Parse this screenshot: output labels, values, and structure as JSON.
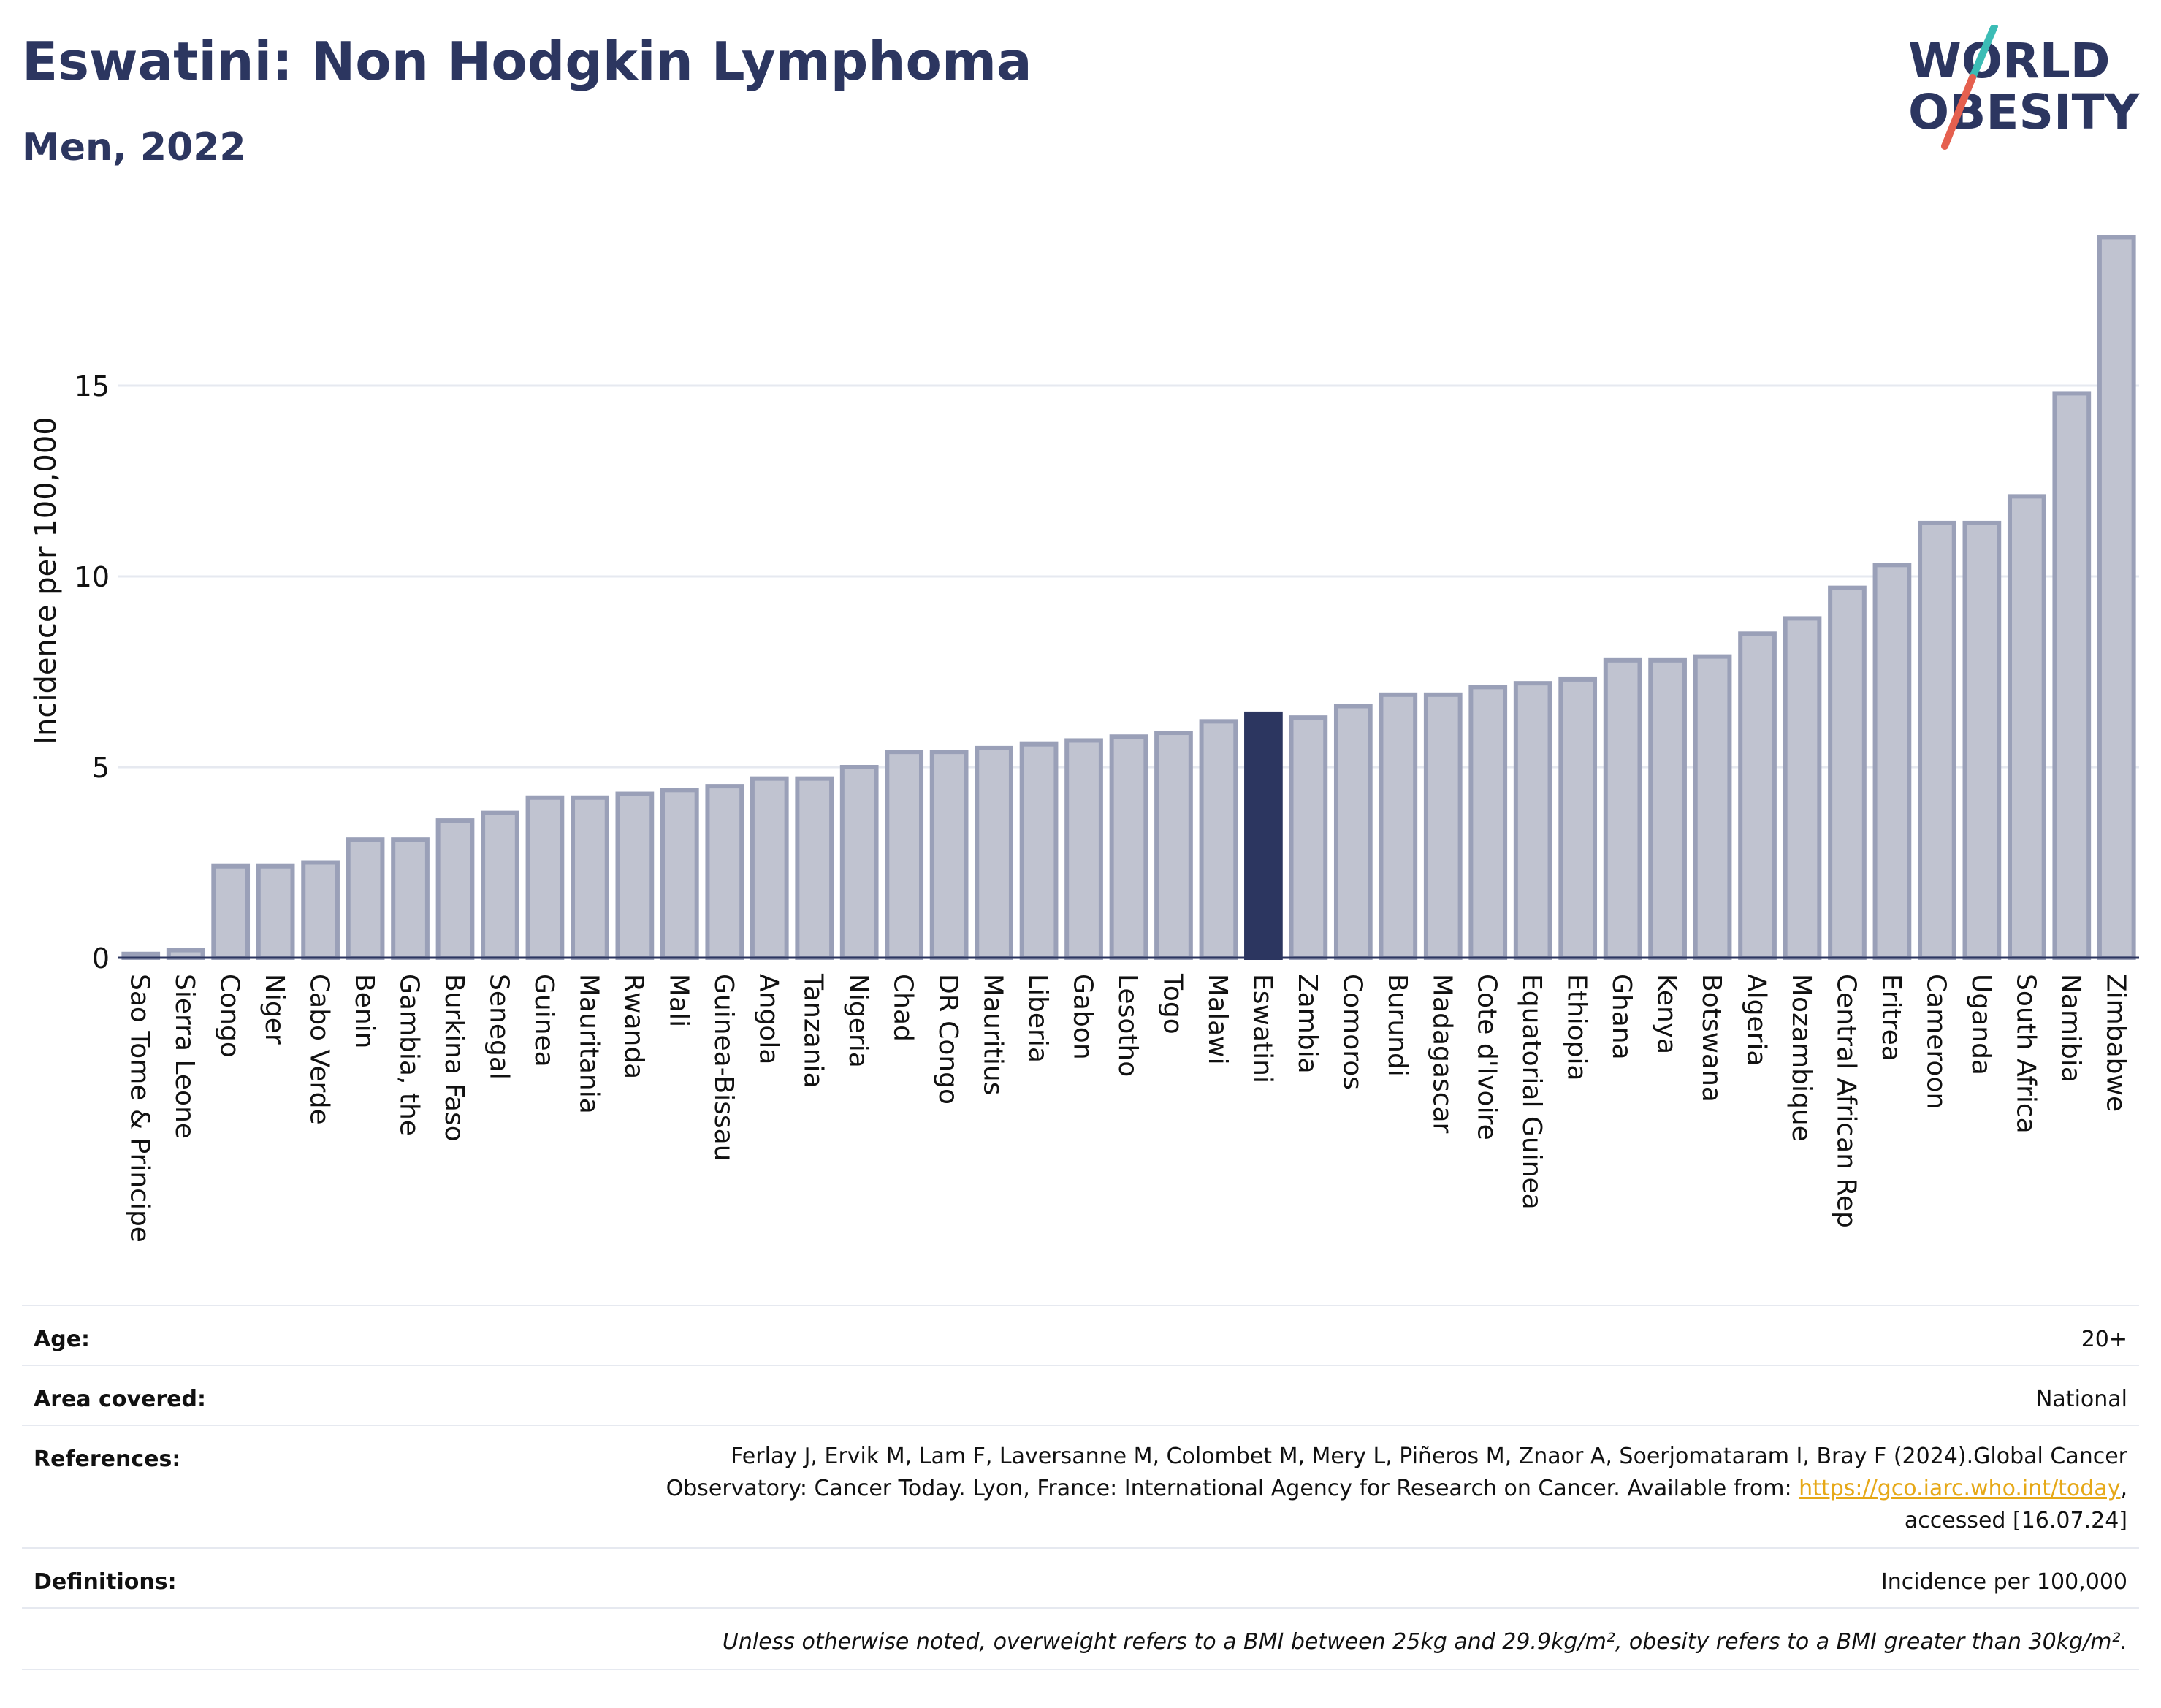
{
  "header": {
    "title": "Eswatini: Non Hodgkin Lymphoma",
    "subtitle": "Men, 2022"
  },
  "logo": {
    "line1": "WORLD",
    "line2": "OBESITY",
    "accent_teal": "#3bbcb5",
    "accent_red": "#e5604f",
    "text_color": "#2c3660"
  },
  "chart_data": {
    "type": "bar",
    "ylabel": "Incidence per 100,000",
    "ylim": [
      0,
      19
    ],
    "yticks": [
      0,
      5,
      10,
      15
    ],
    "grid": true,
    "highlight": "Eswatini",
    "colors": {
      "bar": "#c0c3d0",
      "bar_edge": "#9aa0b8",
      "highlight": "#2c3660",
      "axis": "#2c3660",
      "grid": "#e6e9f0"
    },
    "categories": [
      "Sao Tome & Principe",
      "Sierra Leone",
      "Congo",
      "Niger",
      "Cabo Verde",
      "Benin",
      "Gambia, the",
      "Burkina Faso",
      "Senegal",
      "Guinea",
      "Mauritania",
      "Rwanda",
      "Mali",
      "Guinea-Bissau",
      "Angola",
      "Tanzania",
      "Nigeria",
      "Chad",
      "DR Congo",
      "Mauritius",
      "Liberia",
      "Gabon",
      "Lesotho",
      "Togo",
      "Malawi",
      "Eswatini",
      "Zambia",
      "Comoros",
      "Burundi",
      "Madagascar",
      "Cote d'Ivoire",
      "Equatorial Guinea",
      "Ethiopia",
      "Ghana",
      "Kenya",
      "Botswana",
      "Algeria",
      "Mozambique",
      "Central African Rep",
      "Eritrea",
      "Cameroon",
      "Uganda",
      "South Africa",
      "Namibia",
      "Zimbabwe"
    ],
    "values": [
      0.1,
      0.2,
      2.4,
      2.4,
      2.5,
      3.1,
      3.1,
      3.6,
      3.8,
      4.2,
      4.2,
      4.3,
      4.4,
      4.5,
      4.7,
      4.7,
      5.0,
      5.4,
      5.4,
      5.5,
      5.6,
      5.7,
      5.8,
      5.9,
      6.2,
      6.4,
      6.3,
      6.6,
      6.9,
      6.9,
      7.1,
      7.2,
      7.3,
      7.8,
      7.8,
      7.9,
      8.5,
      8.9,
      9.7,
      10.3,
      11.4,
      11.4,
      12.1,
      14.8,
      18.9
    ]
  },
  "meta": {
    "age_label": "Age:",
    "age_value": "20+",
    "area_label": "Area covered:",
    "area_value": "National",
    "references_label": "References:",
    "references_line1": "Ferlay J, Ervik M, Lam F, Laversanne M, Colombet M, Mery L, Piñeros M, Znaor A, Soerjomataram I, Bray F (2024).Global Cancer",
    "references_line2_pre": "Observatory: Cancer Today. Lyon, France: International Agency for Research on Cancer. Available from: ",
    "references_link": "https://gco.iarc.who.int/today",
    "references_line2_post": ",",
    "references_line3": "accessed [16.07.24]",
    "definitions_label": "Definitions:",
    "definitions_value": "Incidence per 100,000",
    "note": "Unless otherwise noted, overweight refers to a BMI between 25kg and 29.9kg/m², obesity refers to a BMI greater than 30kg/m²."
  }
}
